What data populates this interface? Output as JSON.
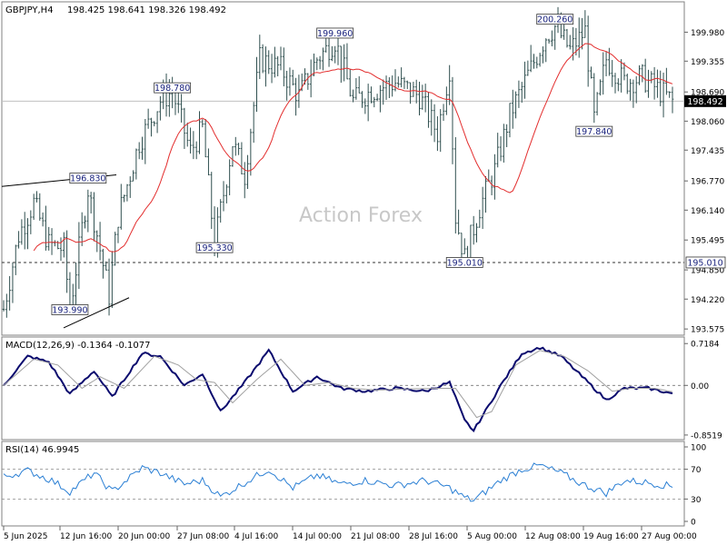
{
  "header": {
    "symbol": "GBPJPY,H4",
    "ohlc": "198.425 198.641 198.326 198.492"
  },
  "watermark": "Action Forex",
  "current_price_label": "198.492",
  "support_label": "195.010",
  "colors": {
    "bars": "#2f4f4f",
    "ma": "#e32e2e",
    "macd": "#0a0a6e",
    "signal": "#a0a0a0",
    "rsi": "#2a7fd4",
    "grid": "#bfbfbf"
  },
  "chart_data": [
    {
      "type": "ohlc",
      "panel": "price",
      "ylim": [
        193.5,
        200.4
      ],
      "y_ticks": [
        "199.980",
        "199.355",
        "198.690",
        "198.060",
        "197.435",
        "196.770",
        "196.140",
        "195.495",
        "194.850",
        "194.220",
        "193.575"
      ],
      "y_tick_values": [
        199.98,
        199.355,
        198.69,
        198.06,
        197.435,
        196.77,
        196.14,
        195.495,
        194.85,
        194.22,
        193.575
      ],
      "x_ticks": [
        "5 Jun 2025",
        "12 Jun 16:00",
        "20 Jun 00:00",
        "27 Jun 08:00",
        "4 Jul 16:00",
        "14 Jul 00:00",
        "21 Jul 08:00",
        "28 Jul 16:00",
        "5 Aug 00:00",
        "12 Aug 08:00",
        "19 Aug 16:00",
        "27 Aug 00:00"
      ],
      "current_price": 198.492,
      "support_level": 195.01,
      "annotations": [
        {
          "label": "199.960",
          "value": 199.96,
          "bar": 110
        },
        {
          "label": "200.260",
          "value": 200.26,
          "bar": 183
        },
        {
          "label": "198.780",
          "value": 198.78,
          "bar": 56
        },
        {
          "label": "196.830",
          "value": 196.83,
          "bar": 28
        },
        {
          "label": "195.330",
          "value": 195.33,
          "bar": 70
        },
        {
          "label": "195.010",
          "value": 195.01,
          "bar": 153
        },
        {
          "label": "193.990",
          "value": 193.99,
          "bar": 22
        },
        {
          "label": "197.840",
          "value": 197.84,
          "bar": 196
        }
      ],
      "anchors": [
        [
          0,
          194.0
        ],
        [
          5,
          195.6
        ],
        [
          10,
          196.3
        ],
        [
          15,
          195.4
        ],
        [
          20,
          195.3
        ],
        [
          22,
          194.0
        ],
        [
          28,
          196.6
        ],
        [
          35,
          194.3
        ],
        [
          38,
          196.0
        ],
        [
          45,
          197.6
        ],
        [
          52,
          198.5
        ],
        [
          56,
          198.7
        ],
        [
          62,
          197.4
        ],
        [
          66,
          197.9
        ],
        [
          70,
          195.4
        ],
        [
          76,
          197.6
        ],
        [
          80,
          196.9
        ],
        [
          85,
          199.4
        ],
        [
          92,
          199.2
        ],
        [
          98,
          198.6
        ],
        [
          104,
          199.4
        ],
        [
          110,
          199.8
        ],
        [
          116,
          198.5
        ],
        [
          122,
          198.7
        ],
        [
          130,
          198.9
        ],
        [
          138,
          198.6
        ],
        [
          144,
          197.8
        ],
        [
          148,
          199.2
        ],
        [
          150,
          196.0
        ],
        [
          153,
          195.1
        ],
        [
          158,
          196.2
        ],
        [
          163,
          197.0
        ],
        [
          168,
          198.2
        ],
        [
          175,
          199.2
        ],
        [
          180,
          199.9
        ],
        [
          183,
          200.1
        ],
        [
          188,
          199.6
        ],
        [
          193,
          200.0
        ],
        [
          196,
          198.1
        ],
        [
          200,
          199.4
        ],
        [
          206,
          198.9
        ],
        [
          212,
          199.0
        ],
        [
          218,
          198.7
        ],
        [
          222,
          198.49
        ]
      ]
    },
    {
      "type": "line",
      "panel": "macd",
      "label": "MACD(12,26,9) -0.1364 -0.1077",
      "ylim": [
        -0.9,
        0.8
      ],
      "y_ticks": [
        "0.7184",
        "0.00",
        "-0.8519"
      ],
      "y_tick_values": [
        0.7184,
        0.0,
        -0.8519
      ],
      "series": [
        {
          "key": "macd",
          "anchors": [
            [
              0,
              0.0
            ],
            [
              8,
              0.5
            ],
            [
              15,
              0.4
            ],
            [
              22,
              -0.15
            ],
            [
              30,
              0.25
            ],
            [
              36,
              -0.2
            ],
            [
              46,
              0.55
            ],
            [
              52,
              0.5
            ],
            [
              60,
              0.0
            ],
            [
              66,
              0.2
            ],
            [
              72,
              -0.45
            ],
            [
              80,
              0.05
            ],
            [
              88,
              0.6
            ],
            [
              96,
              -0.1
            ],
            [
              104,
              0.15
            ],
            [
              112,
              -0.05
            ],
            [
              120,
              -0.1
            ],
            [
              130,
              -0.05
            ],
            [
              140,
              -0.1
            ],
            [
              148,
              0.05
            ],
            [
              153,
              -0.6
            ],
            [
              156,
              -0.78
            ],
            [
              165,
              0.0
            ],
            [
              172,
              0.55
            ],
            [
              178,
              0.65
            ],
            [
              185,
              0.5
            ],
            [
              192,
              0.15
            ],
            [
              200,
              -0.25
            ],
            [
              206,
              -0.05
            ],
            [
              214,
              -0.05
            ],
            [
              222,
              -0.14
            ]
          ]
        },
        {
          "key": "signal",
          "anchors": [
            [
              0,
              0.0
            ],
            [
              10,
              0.45
            ],
            [
              18,
              0.35
            ],
            [
              26,
              -0.05
            ],
            [
              32,
              0.15
            ],
            [
              40,
              -0.05
            ],
            [
              50,
              0.5
            ],
            [
              58,
              0.35
            ],
            [
              64,
              0.1
            ],
            [
              70,
              0.05
            ],
            [
              76,
              -0.3
            ],
            [
              84,
              0.1
            ],
            [
              92,
              0.45
            ],
            [
              100,
              0.0
            ],
            [
              108,
              0.05
            ],
            [
              116,
              -0.05
            ],
            [
              124,
              -0.08
            ],
            [
              134,
              -0.06
            ],
            [
              144,
              -0.05
            ],
            [
              150,
              -0.05
            ],
            [
              157,
              -0.55
            ],
            [
              162,
              -0.45
            ],
            [
              170,
              0.35
            ],
            [
              178,
              0.6
            ],
            [
              186,
              0.5
            ],
            [
              194,
              0.25
            ],
            [
              202,
              -0.1
            ],
            [
              208,
              -0.05
            ],
            [
              216,
              -0.05
            ],
            [
              222,
              -0.11
            ]
          ]
        }
      ]
    },
    {
      "type": "line",
      "panel": "rsi",
      "label": "RSI(14) 46.9945",
      "ylim": [
        0,
        100
      ],
      "y_ticks": [
        "100",
        "70",
        "30",
        "0"
      ],
      "y_tick_values": [
        100,
        70,
        30,
        0
      ],
      "levels": [
        70,
        30
      ],
      "anchors": [
        [
          0,
          60
        ],
        [
          8,
          68
        ],
        [
          16,
          55
        ],
        [
          22,
          40
        ],
        [
          30,
          65
        ],
        [
          36,
          40
        ],
        [
          46,
          72
        ],
        [
          52,
          65
        ],
        [
          60,
          50
        ],
        [
          66,
          55
        ],
        [
          72,
          33
        ],
        [
          80,
          52
        ],
        [
          88,
          70
        ],
        [
          96,
          45
        ],
        [
          104,
          62
        ],
        [
          112,
          50
        ],
        [
          120,
          55
        ],
        [
          130,
          48
        ],
        [
          140,
          55
        ],
        [
          148,
          45
        ],
        [
          153,
          32
        ],
        [
          156,
          28
        ],
        [
          165,
          55
        ],
        [
          172,
          70
        ],
        [
          178,
          75
        ],
        [
          185,
          65
        ],
        [
          192,
          50
        ],
        [
          200,
          38
        ],
        [
          206,
          55
        ],
        [
          214,
          52
        ],
        [
          222,
          47
        ]
      ]
    }
  ]
}
